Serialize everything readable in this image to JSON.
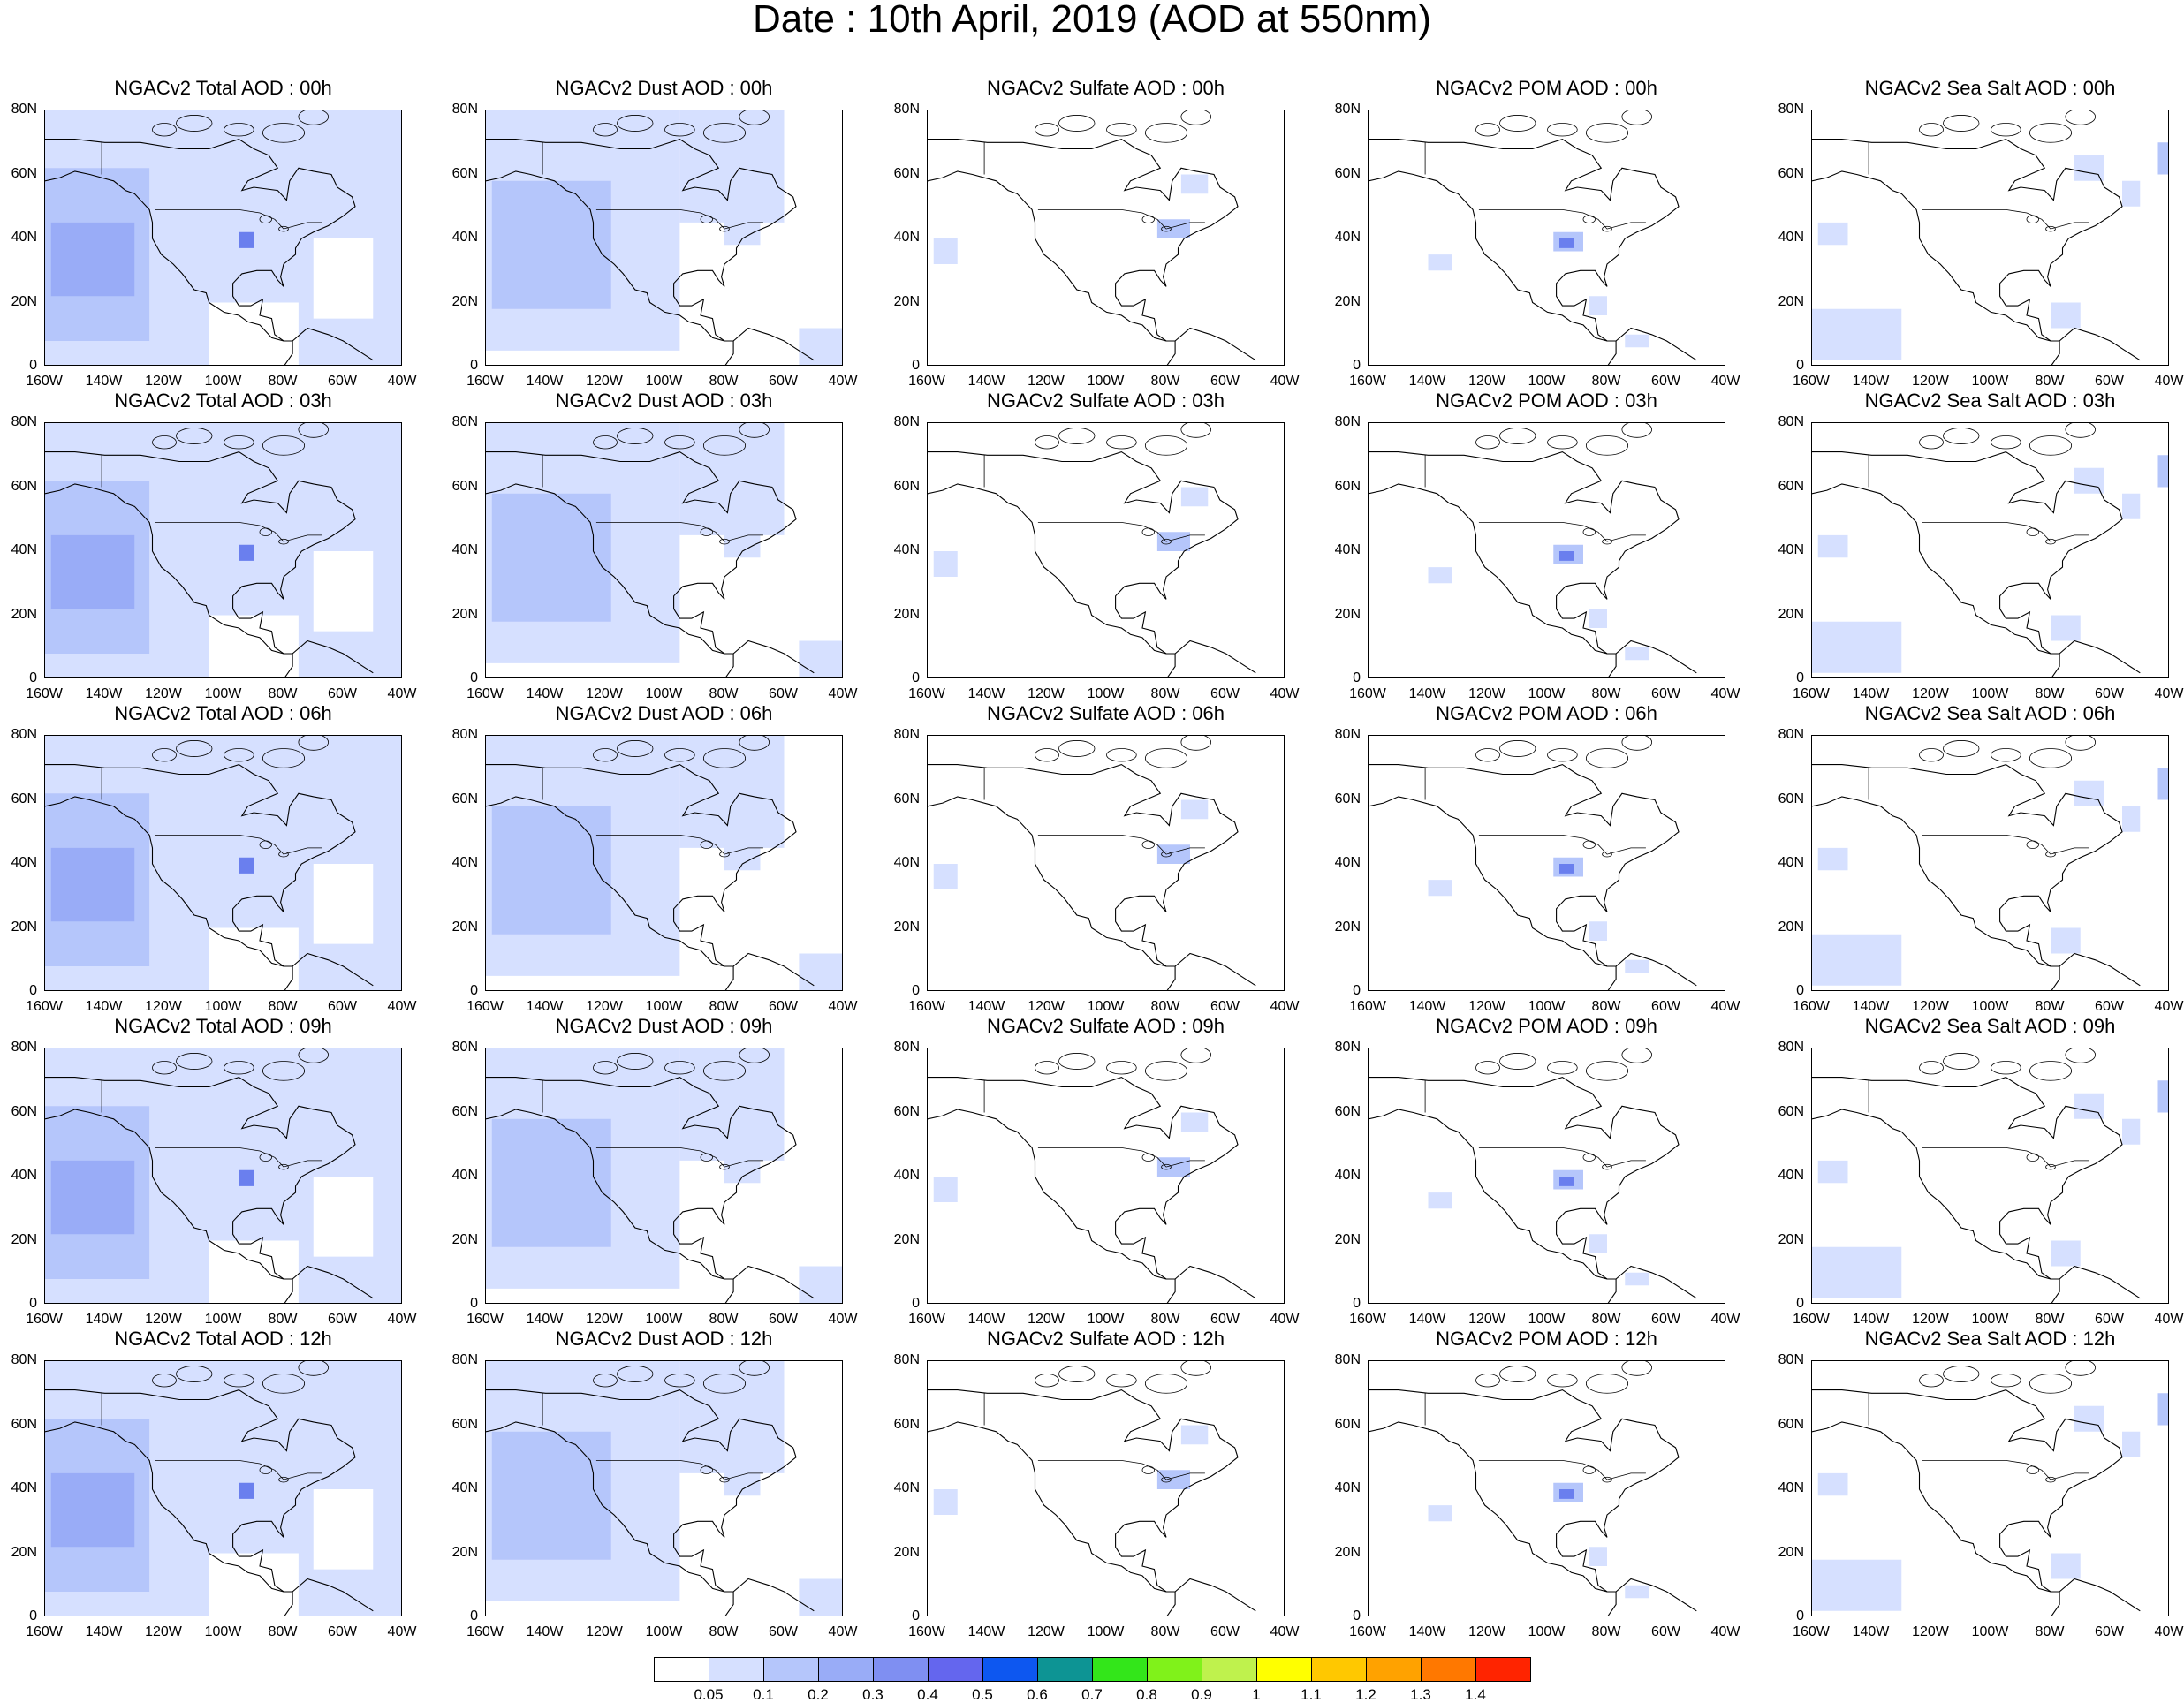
{
  "title": "Date : 10th April, 2019 (AOD at 550nm)",
  "panels": [
    [
      "NGACv2 Total AOD : 00h",
      "NGACv2 Dust AOD : 00h",
      "NGACv2 Sulfate AOD : 00h",
      "NGACv2 POM AOD : 00h",
      "NGACv2 Sea Salt AOD : 00h"
    ],
    [
      "NGACv2 Total AOD : 03h",
      "NGACv2 Dust AOD : 03h",
      "NGACv2 Sulfate AOD : 03h",
      "NGACv2 POM AOD : 03h",
      "NGACv2 Sea Salt AOD : 03h"
    ],
    [
      "NGACv2 Total AOD : 06h",
      "NGACv2 Dust AOD : 06h",
      "NGACv2 Sulfate AOD : 06h",
      "NGACv2 POM AOD : 06h",
      "NGACv2 Sea Salt AOD : 06h"
    ],
    [
      "NGACv2 Total AOD : 09h",
      "NGACv2 Dust AOD : 09h",
      "NGACv2 Sulfate AOD : 09h",
      "NGACv2 POM AOD : 09h",
      "NGACv2 Sea Salt  AOD : 09h"
    ],
    [
      "NGACv2 Total AOD  : 12h",
      "NGACv2 Dust AOD : 12h",
      "NGACv2 Sulfate AOD : 12h",
      "NGACv2 POM  AOD : 12h",
      "NGACv2 Sea Salt  AOD : 12h"
    ]
  ],
  "x_ticks": [
    "160W",
    "140W",
    "120W",
    "100W",
    "80W",
    "60W",
    "40W"
  ],
  "y_ticks": [
    "80N",
    "60N",
    "40N",
    "20N",
    "0"
  ],
  "colorbar": {
    "labels": [
      "0.05",
      "0.1",
      "0.2",
      "0.3",
      "0.4",
      "0.5",
      "0.6",
      "0.7",
      "0.8",
      "0.9",
      "1",
      "1.1",
      "1.2",
      "1.3",
      "1.4"
    ],
    "colors": [
      "#ffffff",
      "#d6e0ff",
      "#b5c6fb",
      "#99acf7",
      "#7f8ff2",
      "#6466ee",
      "#0d57f0",
      "#0d9494",
      "#33e61a",
      "#80f21a",
      "#bff24d",
      "#ffff00",
      "#ffc800",
      "#ffa200",
      "#ff7800",
      "#ff2400"
    ]
  },
  "field_colors": {
    "light": "#d6e0ff",
    "medium": "#b5c6fb",
    "strong": "#99acf7",
    "intense": "#6a7fee"
  }
}
